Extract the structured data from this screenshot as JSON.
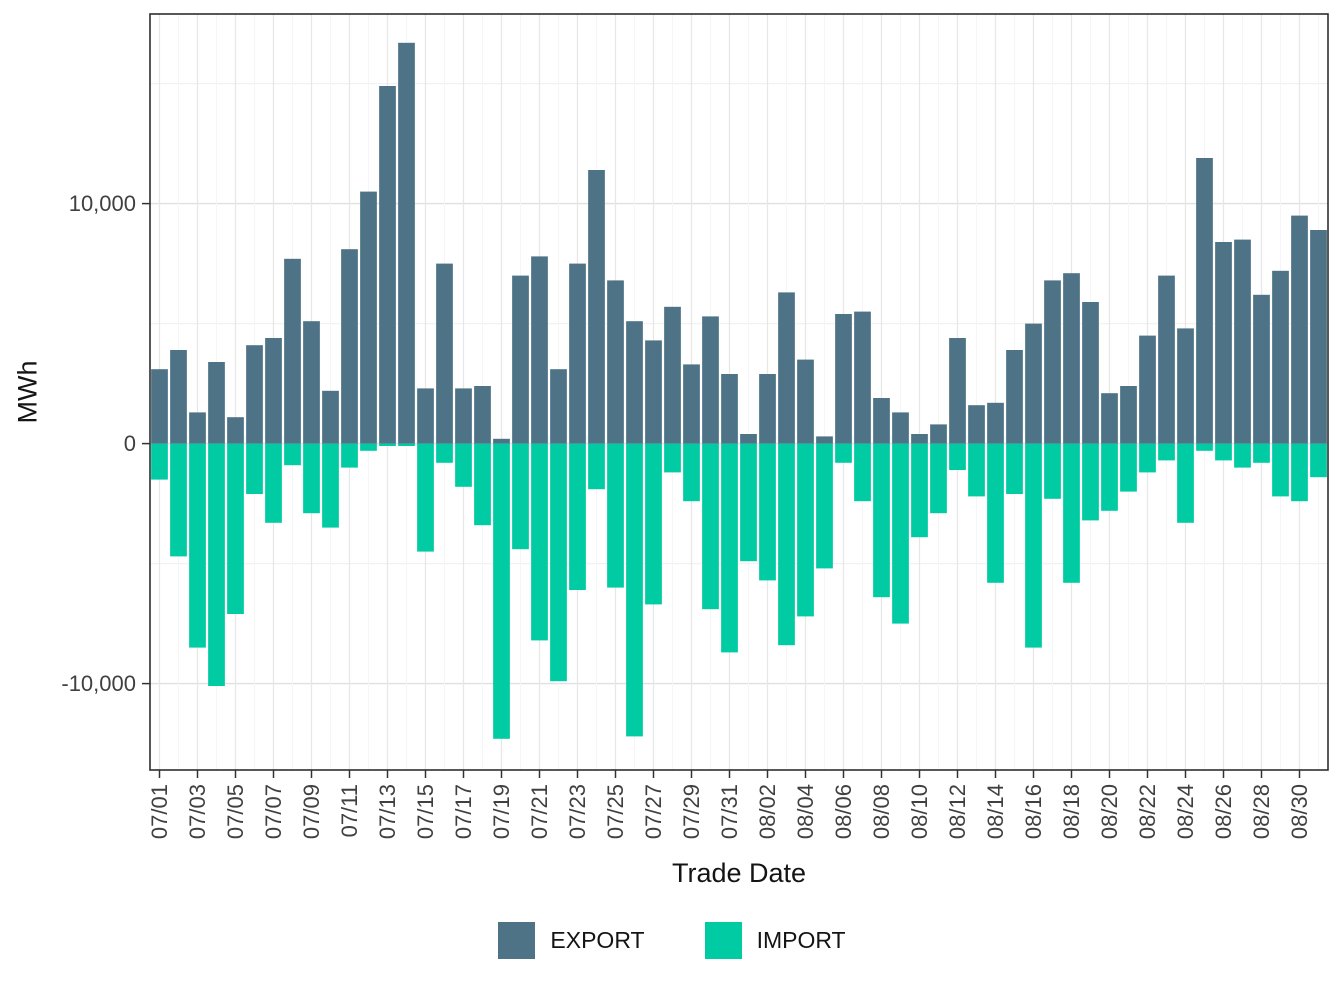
{
  "figure": {
    "y_axis_title": "MWh",
    "x_axis_title": "Trade Date"
  },
  "chart_data": {
    "type": "bar",
    "title": "",
    "xlabel": "Trade Date",
    "ylabel": "MWh",
    "ylim": [
      -13600,
      17900
    ],
    "grid": true,
    "legend_position": "bottom",
    "tick_every": 2,
    "yticks": [
      {
        "value": 10000,
        "label": "10,000"
      },
      {
        "value": 0,
        "label": "0"
      },
      {
        "value": -10000,
        "label": "-10,000"
      }
    ],
    "yminor": [
      15000,
      5000,
      -5000
    ],
    "categories": [
      "07/01",
      "07/02",
      "07/03",
      "07/04",
      "07/05",
      "07/06",
      "07/07",
      "07/08",
      "07/09",
      "07/10",
      "07/11",
      "07/12",
      "07/13",
      "07/14",
      "07/15",
      "07/16",
      "07/17",
      "07/18",
      "07/19",
      "07/20",
      "07/21",
      "07/22",
      "07/23",
      "07/24",
      "07/25",
      "07/26",
      "07/27",
      "07/28",
      "07/29",
      "07/30",
      "07/31",
      "08/01",
      "08/02",
      "08/03",
      "08/04",
      "08/05",
      "08/06",
      "08/07",
      "08/08",
      "08/09",
      "08/10",
      "08/11",
      "08/12",
      "08/13",
      "08/14",
      "08/15",
      "08/16",
      "08/17",
      "08/18",
      "08/19",
      "08/20",
      "08/21",
      "08/22",
      "08/23",
      "08/24",
      "08/25",
      "08/26",
      "08/27",
      "08/28",
      "08/29",
      "08/30",
      "08/31"
    ],
    "series": [
      {
        "name": "EXPORT",
        "color": "#4e7286",
        "values": [
          3100,
          3900,
          1300,
          3400,
          1100,
          4100,
          4400,
          7700,
          5100,
          2200,
          8100,
          10500,
          14900,
          16700,
          2300,
          7500,
          2300,
          2400,
          200,
          7000,
          7800,
          3100,
          7500,
          11400,
          6800,
          5100,
          4300,
          5700,
          3300,
          5300,
          2900,
          400,
          2900,
          6300,
          3500,
          300,
          5400,
          5500,
          1900,
          1300,
          400,
          800,
          4400,
          1600,
          1700,
          3900,
          5000,
          6800,
          7100,
          5900,
          2100,
          2400,
          4500,
          7000,
          4800,
          11900,
          8400,
          8500,
          6200,
          7200,
          9500,
          8900
        ]
      },
      {
        "name": "IMPORT",
        "color": "#00cba2",
        "values": [
          -1500,
          -4700,
          -8500,
          -10100,
          -7100,
          -2100,
          -3300,
          -900,
          -2900,
          -3500,
          -1000,
          -300,
          -100,
          -100,
          -4500,
          -800,
          -1800,
          -3400,
          -12300,
          -4400,
          -8200,
          -9900,
          -6100,
          -1900,
          -6000,
          -12200,
          -6700,
          -1200,
          -2400,
          -6900,
          -8700,
          -4900,
          -5700,
          -8400,
          -7200,
          -5200,
          -800,
          -2400,
          -6400,
          -7500,
          -3900,
          -2900,
          -1100,
          -2200,
          -5800,
          -2100,
          -8500,
          -2300,
          -5800,
          -3200,
          -2800,
          -2000,
          -1200,
          -700,
          -3300,
          -300,
          -700,
          -1000,
          -800,
          -2200,
          -2400,
          -1400
        ]
      }
    ],
    "colors": {
      "panel_border": "#2e2e2e",
      "grid_major": "#e0e0e0",
      "grid_minor": "#f2f2f2",
      "tick_text": "#404040",
      "axis_tick": "#333333"
    }
  }
}
